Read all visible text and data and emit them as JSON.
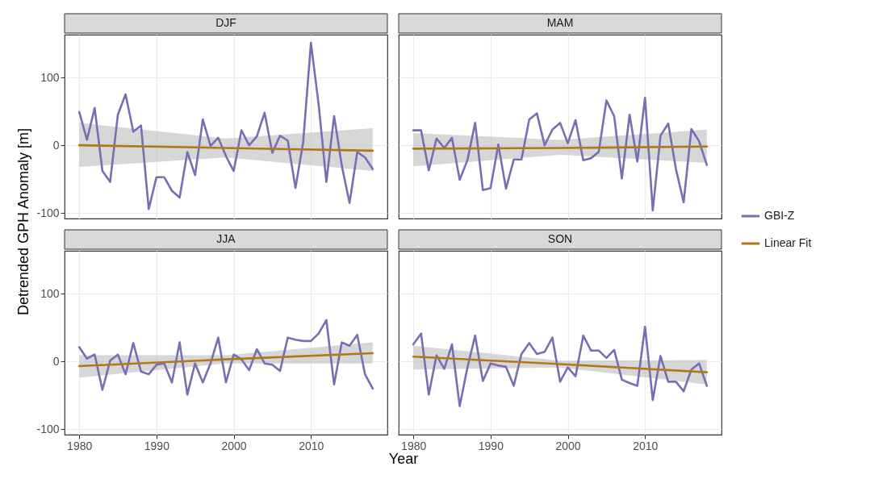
{
  "chart_data": [
    {
      "type": "line",
      "title": "DJF",
      "ylabel": "Detrended GPH Anomaly [m]",
      "x": [
        1980,
        1981,
        1982,
        1983,
        1984,
        1985,
        1986,
        1987,
        1988,
        1989,
        1990,
        1991,
        1992,
        1993,
        1994,
        1995,
        1996,
        1997,
        1998,
        1999,
        2000,
        2001,
        2002,
        2003,
        2004,
        2005,
        2006,
        2007,
        2008,
        2009,
        2010,
        2011,
        2012,
        2013,
        2014,
        2015,
        2016,
        2017,
        2018
      ],
      "series": [
        {
          "name": "GBI-Z",
          "color": "#7570b3",
          "values": [
            49,
            8,
            55,
            -38,
            -54,
            45,
            75,
            20,
            29,
            -94,
            -47,
            -47,
            -67,
            -77,
            -10,
            -44,
            38,
            -1,
            11,
            -16,
            -38,
            22,
            0,
            13,
            48,
            -11,
            14,
            7,
            -63,
            5,
            151,
            60,
            -54,
            43,
            -30,
            -85,
            -10,
            -18,
            -35
          ]
        },
        {
          "name": "Linear Fit",
          "color": "#b0781a",
          "type": "line",
          "x": [
            1980,
            1999,
            2018
          ],
          "values": [
            0,
            -4,
            -8
          ],
          "lower": [
            -32,
            -18,
            -38
          ],
          "upper": [
            33,
            10,
            25
          ]
        }
      ],
      "xlim": [
        1978.1,
        2019.9
      ],
      "ylim": [
        -108,
        163
      ],
      "xticks": [
        1980,
        1990,
        2000,
        2010
      ],
      "yticks": [
        -100,
        0,
        100
      ],
      "grid": true,
      "tick_labels": "y",
      "legend": "right"
    },
    {
      "type": "line",
      "title": "MAM",
      "x": [
        1980,
        1981,
        1982,
        1983,
        1984,
        1985,
        1986,
        1987,
        1988,
        1989,
        1990,
        1991,
        1992,
        1993,
        1994,
        1995,
        1996,
        1997,
        1998,
        1999,
        2000,
        2001,
        2002,
        2003,
        2004,
        2005,
        2006,
        2007,
        2008,
        2009,
        2010,
        2011,
        2012,
        2013,
        2014,
        2015,
        2016,
        2017,
        2018
      ],
      "series": [
        {
          "name": "GBI-Z",
          "color": "#7570b3",
          "values": [
            22,
            22,
            -37,
            10,
            -4,
            11,
            -51,
            -22,
            33,
            -66,
            -63,
            1,
            -64,
            -21,
            -21,
            38,
            47,
            0,
            23,
            33,
            3,
            37,
            -22,
            -19,
            -10,
            66,
            43,
            -49,
            45,
            -24,
            70,
            -96,
            14,
            32,
            -35,
            -84,
            24,
            6,
            -29
          ]
        },
        {
          "name": "Linear Fit",
          "color": "#b0781a",
          "type": "line",
          "x": [
            1980,
            1999,
            2018
          ],
          "values": [
            -5,
            -4,
            -2
          ],
          "lower": [
            -31,
            -14,
            -26
          ],
          "upper": [
            18,
            8,
            23
          ]
        }
      ],
      "xlim": [
        1978.1,
        2019.9
      ],
      "ylim": [
        -108,
        163
      ],
      "xticks": [
        1980,
        1990,
        2000,
        2010
      ],
      "yticks": [
        -100,
        0,
        100
      ],
      "grid": true,
      "tick_labels": false
    },
    {
      "type": "line",
      "title": "JJA",
      "x": [
        1980,
        1981,
        1982,
        1983,
        1984,
        1985,
        1986,
        1987,
        1988,
        1989,
        1990,
        1991,
        1992,
        1993,
        1994,
        1995,
        1996,
        1997,
        1998,
        1999,
        2000,
        2001,
        2002,
        2003,
        2004,
        2005,
        2006,
        2007,
        2008,
        2009,
        2010,
        2011,
        2012,
        2013,
        2014,
        2015,
        2016,
        2017,
        2018
      ],
      "series": [
        {
          "name": "GBI-Z",
          "color": "#7570b3",
          "values": [
            21,
            4,
            10,
            -42,
            1,
            10,
            -19,
            27,
            -15,
            -19,
            -5,
            -3,
            -31,
            28,
            -49,
            -3,
            -31,
            -3,
            35,
            -31,
            10,
            3,
            -13,
            18,
            -3,
            -5,
            -14,
            35,
            32,
            30,
            30,
            41,
            61,
            -34,
            28,
            23,
            39,
            -19,
            -40
          ]
        },
        {
          "name": "Linear Fit",
          "color": "#b0781a",
          "type": "line",
          "x": [
            1980,
            1999,
            2018
          ],
          "values": [
            -7,
            3,
            12
          ],
          "lower": [
            -24,
            -3,
            -3
          ],
          "upper": [
            9,
            9,
            28
          ]
        }
      ],
      "xlim": [
        1978.1,
        2019.9
      ],
      "ylim": [
        -108,
        163
      ],
      "xticks": [
        1980,
        1990,
        2000,
        2010
      ],
      "yticks": [
        -100,
        0,
        100
      ],
      "grid": true
    },
    {
      "type": "line",
      "title": "SON",
      "xlabel": "Year",
      "x": [
        1980,
        1981,
        1982,
        1983,
        1984,
        1985,
        1986,
        1987,
        1988,
        1989,
        1990,
        1991,
        1992,
        1993,
        1994,
        1995,
        1996,
        1997,
        1998,
        1999,
        2000,
        2001,
        2002,
        2003,
        2004,
        2005,
        2006,
        2007,
        2008,
        2009,
        2010,
        2011,
        2012,
        2013,
        2014,
        2015,
        2016,
        2017,
        2018
      ],
      "series": [
        {
          "name": "GBI-Z",
          "color": "#7570b3",
          "values": [
            25,
            41,
            -49,
            9,
            -11,
            25,
            -66,
            -9,
            38,
            -29,
            -3,
            -6,
            -8,
            -36,
            11,
            27,
            11,
            14,
            35,
            -30,
            -9,
            -22,
            38,
            16,
            16,
            5,
            17,
            -27,
            -32,
            -36,
            51,
            -57,
            8,
            -30,
            -30,
            -44,
            -12,
            -3,
            -36
          ]
        },
        {
          "name": "Linear Fit",
          "color": "#b0781a",
          "type": "line",
          "x": [
            1980,
            1999,
            2018
          ],
          "values": [
            7,
            -4,
            -16
          ],
          "lower": [
            -12,
            -9,
            -34
          ],
          "upper": [
            23,
            1,
            2
          ]
        }
      ],
      "xlim": [
        1978.1,
        2019.9
      ],
      "ylim": [
        -108,
        163
      ],
      "xticks": [
        1980,
        1990,
        2000,
        2010
      ],
      "yticks": [
        -100,
        0,
        100
      ],
      "grid": true,
      "tick_labels": "x"
    }
  ]
}
